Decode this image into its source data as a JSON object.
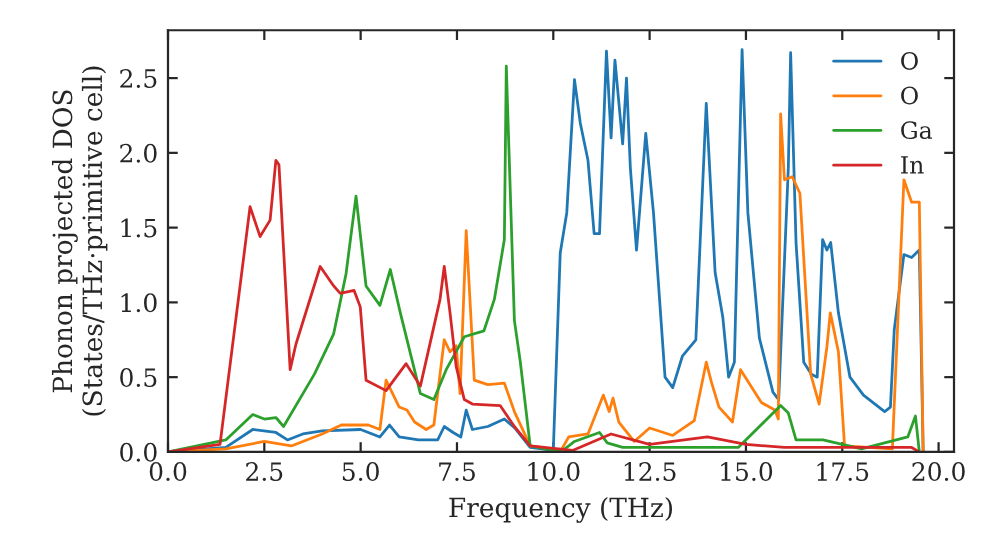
{
  "chart_data": {
    "type": "line",
    "xlabel": "Frequency (THz)",
    "ylabel": "Phonon projected DOS\n(States/THz·primitive cell)",
    "xlim": [
      0,
      20.4
    ],
    "ylim": [
      0,
      2.82
    ],
    "xticks": [
      {
        "value": 0,
        "label": "0.0"
      },
      2.5,
      {
        "value": 5,
        "label": "5.0"
      },
      7.5,
      {
        "value": 10,
        "label": "10.0"
      },
      12.5,
      {
        "value": 15,
        "label": "15.0"
      },
      17.5,
      {
        "value": 20,
        "label": "20.0"
      }
    ],
    "yticks": [
      {
        "value": 0,
        "label": "0.0"
      },
      0.5,
      {
        "value": 1,
        "label": "1.0"
      },
      1.5,
      {
        "value": 2,
        "label": "2.0"
      },
      2.5
    ],
    "grid": false,
    "legend": "top right",
    "series": [
      {
        "name": "O",
        "color": "#1f77b4",
        "x": [
          0,
          1.5,
          2.2,
          2.8,
          3.1,
          3.5,
          4.0,
          5.0,
          5.5,
          5.75,
          6.0,
          6.5,
          7.0,
          7.17,
          7.4,
          7.6,
          7.74,
          7.9,
          8.3,
          8.73,
          9.0,
          9.4,
          10.0,
          10.18,
          10.35,
          10.55,
          10.7,
          10.9,
          11.06,
          11.2,
          11.38,
          11.5,
          11.6,
          11.8,
          11.9,
          12.0,
          12.16,
          12.4,
          12.6,
          12.9,
          13.1,
          13.35,
          13.7,
          13.97,
          14.2,
          14.4,
          14.55,
          14.7,
          14.9,
          15.05,
          15.35,
          15.7,
          15.85,
          16.1,
          16.16,
          16.3,
          16.5,
          16.7,
          16.85,
          16.99,
          17.1,
          17.2,
          17.4,
          17.7,
          18.05,
          18.6,
          18.75,
          18.85,
          19.1,
          19.3,
          19.5,
          19.6
        ],
        "values": [
          0,
          0.03,
          0.15,
          0.13,
          0.08,
          0.12,
          0.14,
          0.15,
          0.1,
          0.18,
          0.1,
          0.08,
          0.08,
          0.17,
          0.13,
          0.1,
          0.28,
          0.15,
          0.17,
          0.22,
          0.16,
          0.03,
          0.01,
          1.33,
          1.6,
          2.49,
          2.2,
          1.95,
          1.46,
          1.46,
          2.68,
          2.1,
          2.62,
          2.06,
          2.5,
          1.9,
          1.35,
          2.13,
          1.6,
          0.5,
          0.43,
          0.64,
          0.75,
          2.33,
          1.2,
          0.9,
          0.5,
          0.6,
          2.69,
          1.6,
          0.76,
          0.4,
          0.35,
          1.9,
          2.67,
          1.4,
          0.6,
          0.52,
          0.5,
          1.42,
          1.35,
          1.4,
          0.93,
          0.5,
          0.38,
          0.27,
          0.3,
          0.82,
          1.32,
          1.3,
          1.35,
          0
        ]
      },
      {
        "name": "O",
        "color": "#ff7f0e",
        "x": [
          0,
          1.5,
          2.5,
          3.2,
          4.0,
          4.5,
          5.2,
          5.5,
          5.66,
          6.0,
          6.2,
          6.4,
          6.7,
          6.9,
          7.17,
          7.32,
          7.48,
          7.58,
          7.74,
          7.95,
          8.3,
          8.73,
          8.99,
          9.4,
          10.2,
          10.4,
          10.9,
          11.3,
          11.45,
          11.55,
          11.7,
          12.1,
          12.5,
          13.1,
          13.66,
          13.97,
          14.1,
          14.3,
          14.65,
          14.86,
          15.4,
          15.75,
          15.84,
          15.9,
          16.0,
          16.2,
          16.4,
          16.68,
          16.9,
          17.1,
          17.19,
          17.4,
          17.56,
          18.8,
          19.1,
          19.3,
          19.5,
          19.6
        ],
        "values": [
          0,
          0.02,
          0.07,
          0.04,
          0.12,
          0.18,
          0.18,
          0.15,
          0.48,
          0.3,
          0.28,
          0.2,
          0.15,
          0.18,
          0.75,
          0.67,
          0.71,
          0.39,
          1.48,
          0.48,
          0.45,
          0.46,
          0.27,
          0.04,
          0.01,
          0.1,
          0.12,
          0.38,
          0.27,
          0.36,
          0.2,
          0.07,
          0.16,
          0.11,
          0.21,
          0.6,
          0.47,
          0.3,
          0.2,
          0.55,
          0.33,
          0.28,
          0.22,
          2.26,
          1.82,
          1.84,
          1.73,
          0.52,
          0.32,
          0.7,
          0.93,
          0.67,
          0.04,
          0.02,
          1.82,
          1.67,
          1.67,
          0
        ]
      },
      {
        "name": "Ga",
        "color": "#2ca02c",
        "x": [
          0,
          1.5,
          2.2,
          2.5,
          2.8,
          3.0,
          3.8,
          4.3,
          4.62,
          4.88,
          5.14,
          5.5,
          5.77,
          6.03,
          6.55,
          6.9,
          7.22,
          7.69,
          8.2,
          8.47,
          8.73,
          8.78,
          8.99,
          9.14,
          9.4,
          10.0,
          10.3,
          10.55,
          11.2,
          11.4,
          11.8,
          14.8,
          15.9,
          16.1,
          16.3,
          17.0,
          18.0,
          19.2,
          19.4,
          19.5
        ],
        "values": [
          0,
          0.08,
          0.25,
          0.22,
          0.23,
          0.17,
          0.52,
          0.79,
          1.19,
          1.71,
          1.11,
          0.98,
          1.22,
          0.93,
          0.39,
          0.35,
          0.55,
          0.77,
          0.81,
          1.02,
          1.42,
          2.58,
          0.88,
          0.61,
          0.04,
          0.01,
          0.02,
          0.07,
          0.13,
          0.06,
          0.03,
          0.03,
          0.31,
          0.26,
          0.08,
          0.08,
          0.02,
          0.1,
          0.24,
          0
        ]
      },
      {
        "name": "In",
        "color": "#d62728",
        "x": [
          0,
          1.35,
          2.13,
          2.39,
          2.65,
          2.8,
          2.88,
          3.17,
          3.32,
          3.95,
          4.3,
          4.47,
          4.83,
          4.99,
          5.14,
          5.66,
          6.18,
          6.55,
          7.06,
          7.17,
          7.32,
          7.48,
          7.69,
          7.9,
          8.62,
          8.99,
          9.4,
          10.5,
          11.5,
          12.5,
          14.0,
          15.0,
          16.0,
          19.3,
          19.5
        ],
        "values": [
          0,
          0.05,
          1.64,
          1.44,
          1.55,
          1.95,
          1.92,
          0.55,
          0.72,
          1.24,
          1.11,
          1.06,
          1.08,
          0.97,
          0.48,
          0.41,
          0.59,
          0.44,
          1.02,
          1.24,
          0.93,
          0.57,
          0.35,
          0.32,
          0.31,
          0.17,
          0.04,
          0.01,
          0.12,
          0.05,
          0.1,
          0.05,
          0.03,
          0.03,
          0
        ]
      }
    ]
  }
}
